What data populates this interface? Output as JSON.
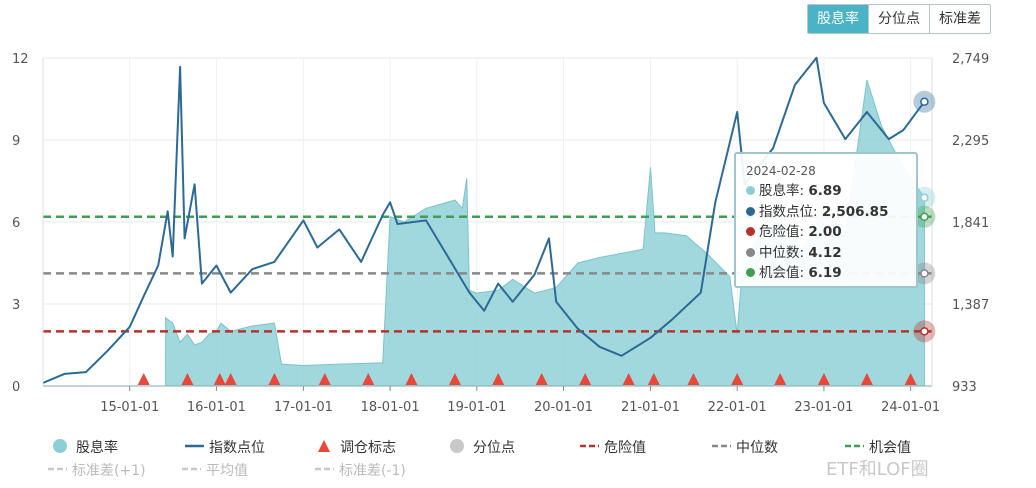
{
  "tabs": [
    {
      "label": "股息率",
      "active": true
    },
    {
      "label": "分位点",
      "active": false
    },
    {
      "label": "标准差",
      "active": false
    }
  ],
  "tooltip": {
    "date": "2024-02-28",
    "rows": [
      {
        "label": "股息率",
        "value": "6.89",
        "color": "#8ccfd7"
      },
      {
        "label": "指数点位",
        "value": "2,506.85",
        "color": "#2c6a95"
      },
      {
        "label": "危险值",
        "value": "2.00",
        "color": "#b5332b"
      },
      {
        "label": "中位数",
        "value": "4.12",
        "color": "#888888"
      },
      {
        "label": "机会值",
        "value": "6.19",
        "color": "#3f9e4f"
      }
    ]
  },
  "watermark": "ETF和LOF圈",
  "chart_data": {
    "type": "line",
    "x_ticks": [
      "15-01-01",
      "16-01-01",
      "17-01-01",
      "18-01-01",
      "19-01-01",
      "20-01-01",
      "21-01-01",
      "22-01-01",
      "23-01-01",
      "24-01-01"
    ],
    "y_left": {
      "ticks": [
        "0",
        "3",
        "6",
        "9",
        "12"
      ],
      "range": [
        0,
        12
      ]
    },
    "y_right": {
      "ticks": [
        "933",
        "1,387",
        "1,841",
        "2,295",
        "2,749"
      ],
      "range": [
        933,
        2749
      ]
    },
    "x_range": [
      "2014-01-01",
      "2024-03-31"
    ],
    "grid": true,
    "legend_position": "bottom",
    "colors": {
      "dividend": "#8ccfd7",
      "index": "#2c6a95",
      "marker": "#e8473a",
      "quantile": "#c8c8c8",
      "danger": "#b5332b",
      "median": "#888888",
      "opportunity": "#3f9e4f",
      "std": "#c8c8c8"
    },
    "legend": [
      {
        "label": "股息率",
        "kind": "dot",
        "color": "#8ccfd7"
      },
      {
        "label": "指数点位",
        "kind": "line",
        "color": "#2c6a95"
      },
      {
        "label": "调仓标志",
        "kind": "triangle",
        "color": "#e8473a"
      },
      {
        "label": "分位点",
        "kind": "dot",
        "color": "#c8c8c8"
      },
      {
        "label": "危险值",
        "kind": "dash",
        "color": "#b5332b"
      },
      {
        "label": "中位数",
        "kind": "dash",
        "color": "#888888"
      },
      {
        "label": "机会值",
        "kind": "dash",
        "color": "#3f9e4f"
      },
      {
        "label": "标准差(+1)",
        "kind": "dash",
        "color": "#c8c8c8"
      },
      {
        "label": "平均值",
        "kind": "dash",
        "color": "#c8c8c8"
      },
      {
        "label": "标准差(-1)",
        "kind": "dash",
        "color": "#c8c8c8"
      }
    ],
    "hlines": [
      {
        "name": "机会值",
        "value": 6.19,
        "color": "#3f9e4f"
      },
      {
        "name": "中位数",
        "value": 4.12,
        "color": "#888888"
      },
      {
        "name": "危险值",
        "value": 2.0,
        "color": "#b5332b"
      }
    ],
    "dividend_yield": [
      [
        "2015-06-01",
        2.5
      ],
      [
        "2015-07-01",
        2.3
      ],
      [
        "2015-08-01",
        1.6
      ],
      [
        "2015-09-01",
        1.9
      ],
      [
        "2015-10-01",
        1.5
      ],
      [
        "2015-11-01",
        1.6
      ],
      [
        "2015-12-01",
        1.9
      ],
      [
        "2016-01-01",
        2.0
      ],
      [
        "2016-01-20",
        2.3
      ],
      [
        "2016-03-01",
        2.0
      ],
      [
        "2016-06-01",
        2.2
      ],
      [
        "2016-09-01",
        2.3
      ],
      [
        "2016-10-01",
        0.8
      ],
      [
        "2017-01-01",
        0.75
      ],
      [
        "2017-06-01",
        0.8
      ],
      [
        "2017-12-01",
        0.85
      ],
      [
        "2018-01-01",
        6.2
      ],
      [
        "2018-03-01",
        6.0
      ],
      [
        "2018-06-01",
        6.5
      ],
      [
        "2018-10-01",
        6.8
      ],
      [
        "2018-11-01",
        6.5
      ],
      [
        "2018-11-20",
        7.6
      ],
      [
        "2018-12-01",
        3.5
      ],
      [
        "2019-01-01",
        3.4
      ],
      [
        "2019-04-01",
        3.5
      ],
      [
        "2019-06-01",
        3.9
      ],
      [
        "2019-09-01",
        3.4
      ],
      [
        "2019-12-01",
        3.6
      ],
      [
        "2020-03-01",
        4.5
      ],
      [
        "2020-06-01",
        4.7
      ],
      [
        "2020-08-01",
        4.8
      ],
      [
        "2020-12-01",
        5.0
      ],
      [
        "2021-01-01",
        8.0
      ],
      [
        "2021-01-20",
        5.6
      ],
      [
        "2021-03-01",
        5.6
      ],
      [
        "2021-06-01",
        5.5
      ],
      [
        "2021-09-01",
        4.8
      ],
      [
        "2021-12-01",
        4.0
      ],
      [
        "2022-01-01",
        1.9
      ],
      [
        "2022-01-20",
        4.0
      ],
      [
        "2022-04-01",
        5.5
      ],
      [
        "2022-07-01",
        6.0
      ],
      [
        "2022-10-01",
        5.0
      ],
      [
        "2023-01-01",
        6.5
      ],
      [
        "2023-04-01",
        5.5
      ],
      [
        "2023-07-01",
        11.2
      ],
      [
        "2023-09-01",
        9.5
      ],
      [
        "2023-12-01",
        8.0
      ],
      [
        "2024-02-28",
        6.89
      ]
    ],
    "index_level": [
      [
        "2014-01-01",
        950
      ],
      [
        "2014-04-01",
        1000
      ],
      [
        "2014-07-01",
        1010
      ],
      [
        "2014-10-01",
        1130
      ],
      [
        "2015-01-01",
        1260
      ],
      [
        "2015-03-01",
        1430
      ],
      [
        "2015-05-01",
        1600
      ],
      [
        "2015-06-10",
        1900
      ],
      [
        "2015-07-01",
        1650
      ],
      [
        "2015-08-01",
        2700
      ],
      [
        "2015-08-20",
        1750
      ],
      [
        "2015-10-01",
        2050
      ],
      [
        "2015-11-01",
        1500
      ],
      [
        "2016-01-01",
        1600
      ],
      [
        "2016-03-01",
        1450
      ],
      [
        "2016-06-01",
        1580
      ],
      [
        "2016-09-01",
        1620
      ],
      [
        "2017-01-01",
        1850
      ],
      [
        "2017-03-01",
        1700
      ],
      [
        "2017-06-01",
        1800
      ],
      [
        "2017-09-01",
        1620
      ],
      [
        "2017-12-01",
        1880
      ],
      [
        "2018-01-01",
        1950
      ],
      [
        "2018-02-01",
        1830
      ],
      [
        "2018-06-01",
        1850
      ],
      [
        "2018-09-01",
        1650
      ],
      [
        "2018-12-01",
        1450
      ],
      [
        "2019-02-01",
        1350
      ],
      [
        "2019-04-01",
        1500
      ],
      [
        "2019-06-01",
        1400
      ],
      [
        "2019-09-01",
        1550
      ],
      [
        "2019-11-01",
        1750
      ],
      [
        "2019-12-01",
        1400
      ],
      [
        "2020-03-01",
        1250
      ],
      [
        "2020-06-01",
        1150
      ],
      [
        "2020-09-01",
        1100
      ],
      [
        "2021-01-01",
        1200
      ],
      [
        "2021-04-01",
        1300
      ],
      [
        "2021-08-01",
        1450
      ],
      [
        "2021-10-01",
        1950
      ],
      [
        "2022-01-01",
        2450
      ],
      [
        "2022-02-01",
        2050
      ],
      [
        "2022-06-01",
        2250
      ],
      [
        "2022-09-01",
        2600
      ],
      [
        "2022-12-01",
        2750
      ],
      [
        "2023-01-01",
        2500
      ],
      [
        "2023-04-01",
        2300
      ],
      [
        "2023-07-01",
        2450
      ],
      [
        "2023-10-01",
        2300
      ],
      [
        "2023-12-01",
        2350
      ],
      [
        "2024-02-28",
        2506.85
      ]
    ],
    "rebalance_markers": [
      "2015-03-01",
      "2015-09-01",
      "2016-01-15",
      "2016-03-01",
      "2016-09-01",
      "2017-04-01",
      "2017-10-01",
      "2018-04-01",
      "2018-10-01",
      "2019-04-01",
      "2019-10-01",
      "2020-04-01",
      "2020-10-01",
      "2021-01-15",
      "2021-07-01",
      "2022-01-01",
      "2022-07-01",
      "2023-01-01",
      "2023-07-01",
      "2024-01-01"
    ]
  }
}
